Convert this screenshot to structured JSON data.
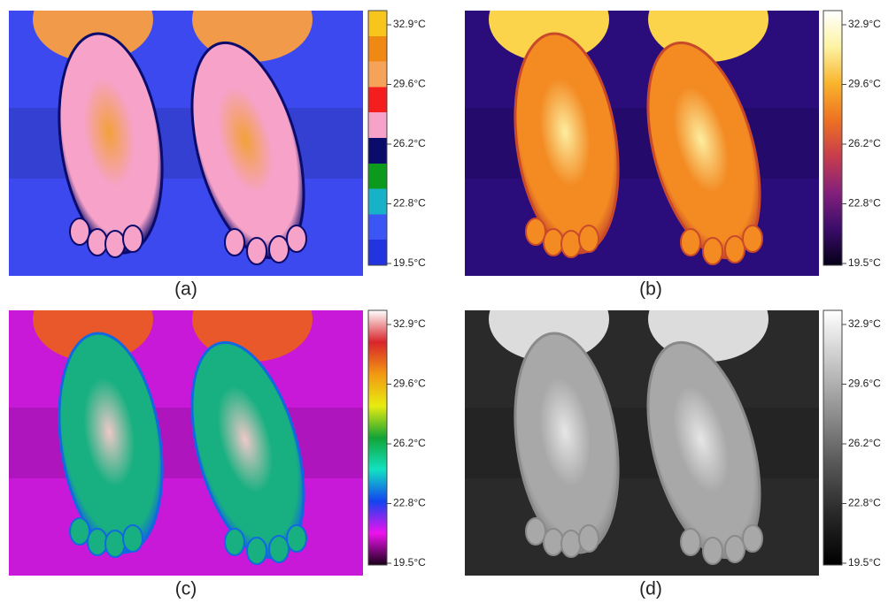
{
  "panels": [
    {
      "label": "(a)",
      "ticks": [
        "32.9°C",
        "29.6°C",
        "26.2°C",
        "22.8°C",
        "19.5°C"
      ]
    },
    {
      "label": "(b)",
      "ticks": [
        "32.9°C",
        "29.6°C",
        "26.2°C",
        "22.8°C",
        "19.5°C"
      ]
    },
    {
      "label": "(c)",
      "ticks": [
        "32.9°C",
        "29.6°C",
        "26.2°C",
        "22.8°C",
        "19.5°C"
      ]
    },
    {
      "label": "(d)",
      "ticks": [
        "32.9°C",
        "29.6°C",
        "26.2°C",
        "22.8°C",
        "19.5°C"
      ]
    }
  ]
}
